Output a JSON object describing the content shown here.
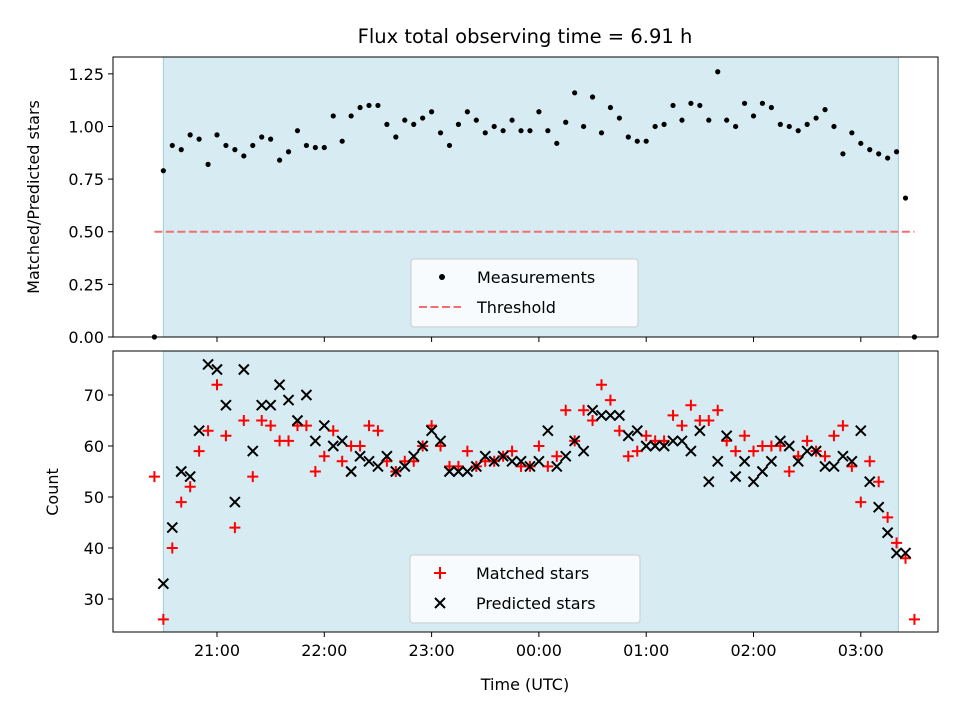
{
  "chart_data": [
    {
      "type": "scatter",
      "title": "Flux total observing time = 6.91 h",
      "xlabel": "",
      "ylabel": "Matched/Predicted stars",
      "ylim": [
        0,
        1.33
      ],
      "yticks": [
        "0.00",
        "0.25",
        "0.50",
        "0.75",
        "1.00",
        "1.25"
      ],
      "grid": false,
      "legend_position": "lower-center",
      "observing_window": [
        "20:30",
        "03:21"
      ],
      "series": [
        {
          "name": "Measurements",
          "color": "#000000",
          "marker": "dot",
          "x": [
            "20:25",
            "20:30",
            "20:35",
            "20:40",
            "20:45",
            "20:50",
            "20:55",
            "21:00",
            "21:05",
            "21:10",
            "21:15",
            "21:20",
            "21:25",
            "21:30",
            "21:35",
            "21:40",
            "21:45",
            "21:50",
            "21:55",
            "22:00",
            "22:05",
            "22:10",
            "22:15",
            "22:20",
            "22:25",
            "22:30",
            "22:35",
            "22:40",
            "22:45",
            "22:50",
            "22:55",
            "23:00",
            "23:05",
            "23:10",
            "23:15",
            "23:20",
            "23:25",
            "23:30",
            "23:35",
            "23:40",
            "23:45",
            "23:50",
            "23:55",
            "00:00",
            "00:05",
            "00:10",
            "00:15",
            "00:20",
            "00:25",
            "00:30",
            "00:35",
            "00:40",
            "00:45",
            "00:50",
            "00:55",
            "01:00",
            "01:05",
            "01:10",
            "01:15",
            "01:20",
            "01:25",
            "01:30",
            "01:35",
            "01:40",
            "01:45",
            "01:50",
            "01:55",
            "02:00",
            "02:05",
            "02:10",
            "02:15",
            "02:20",
            "02:25",
            "02:30",
            "02:35",
            "02:40",
            "02:45",
            "02:50",
            "02:55",
            "03:00",
            "03:05",
            "03:10",
            "03:15",
            "03:20",
            "03:25"
          ],
          "values": [
            0.0,
            0.79,
            0.91,
            0.89,
            0.96,
            0.94,
            0.82,
            0.96,
            0.91,
            0.89,
            0.86,
            0.91,
            0.95,
            0.94,
            0.84,
            0.88,
            0.98,
            0.91,
            0.9,
            0.9,
            1.05,
            0.93,
            1.05,
            1.09,
            1.1,
            1.1,
            1.01,
            0.95,
            1.03,
            1.01,
            1.04,
            1.07,
            0.97,
            0.91,
            1.01,
            1.07,
            1.03,
            0.97,
            1.0,
            0.98,
            1.03,
            0.98,
            0.98,
            1.07,
            0.98,
            0.92,
            1.02,
            1.16,
            1.0,
            1.14,
            0.97,
            1.09,
            1.04,
            0.95,
            0.93,
            0.93,
            1.0,
            1.01,
            1.1,
            1.03,
            1.11,
            1.1,
            1.03,
            1.26,
            1.03,
            1.0,
            1.11,
            1.05,
            1.11,
            1.09,
            1.01,
            1.0,
            0.98,
            1.01,
            1.04,
            1.08,
            1.0,
            0.87,
            0.97,
            0.92,
            0.89,
            0.87,
            0.85,
            0.88,
            0.66
          ]
        },
        {
          "name": "Threshold",
          "color": "#f07070",
          "style": "dashed",
          "x": [
            "20:25",
            "03:30"
          ],
          "values": [
            0.5,
            0.5
          ]
        }
      ],
      "extra_points": [
        {
          "x": "03:30",
          "y": 0.0
        }
      ]
    },
    {
      "type": "scatter",
      "title": "",
      "xlabel": "Time (UTC)",
      "ylabel": "Count",
      "ylim": [
        23,
        78
      ],
      "yticks": [
        "30",
        "40",
        "50",
        "60",
        "70"
      ],
      "xticks": [
        "21:00",
        "22:00",
        "23:00",
        "00:00",
        "01:00",
        "02:00",
        "03:00"
      ],
      "grid": false,
      "legend_position": "lower-center",
      "series": [
        {
          "name": "Matched stars",
          "color": "#ff0000",
          "marker": "plus",
          "x": [
            "20:25",
            "20:30",
            "20:35",
            "20:40",
            "20:45",
            "20:50",
            "20:55",
            "21:00",
            "21:05",
            "21:10",
            "21:15",
            "21:20",
            "21:25",
            "21:30",
            "21:35",
            "21:40",
            "21:45",
            "21:50",
            "21:55",
            "22:00",
            "22:05",
            "22:10",
            "22:15",
            "22:20",
            "22:25",
            "22:30",
            "22:35",
            "22:40",
            "22:45",
            "22:50",
            "22:55",
            "23:00",
            "23:05",
            "23:10",
            "23:15",
            "23:20",
            "23:25",
            "23:30",
            "23:35",
            "23:40",
            "23:45",
            "23:50",
            "23:55",
            "00:00",
            "00:05",
            "00:10",
            "00:15",
            "00:20",
            "00:25",
            "00:30",
            "00:35",
            "00:40",
            "00:45",
            "00:50",
            "00:55",
            "01:00",
            "01:05",
            "01:10",
            "01:15",
            "01:20",
            "01:25",
            "01:30",
            "01:35",
            "01:40",
            "01:45",
            "01:50",
            "01:55",
            "02:00",
            "02:05",
            "02:10",
            "02:15",
            "02:20",
            "02:25",
            "02:30",
            "02:35",
            "02:40",
            "02:45",
            "02:50",
            "02:55",
            "03:00",
            "03:05",
            "03:10",
            "03:15",
            "03:20",
            "03:25",
            "03:30"
          ],
          "values": [
            54,
            26,
            40,
            49,
            52,
            59,
            63,
            72,
            62,
            44,
            65,
            54,
            65,
            64,
            61,
            61,
            64,
            64,
            55,
            58,
            63,
            57,
            60,
            60,
            64,
            63,
            57,
            55,
            57,
            57,
            60,
            64,
            60,
            56,
            56,
            59,
            56,
            57,
            57,
            58,
            59,
            56,
            56,
            60,
            56,
            58,
            67,
            61,
            67,
            65,
            72,
            69,
            63,
            58,
            59,
            62,
            61,
            61,
            66,
            64,
            68,
            65,
            65,
            67,
            61,
            59,
            62,
            59,
            60,
            60,
            60,
            55,
            58,
            61,
            59,
            58,
            62,
            64,
            56,
            49,
            57,
            53,
            46,
            41,
            38,
            26
          ]
        },
        {
          "name": "Predicted stars",
          "color": "#000000",
          "marker": "x",
          "x": [
            "20:30",
            "20:35",
            "20:40",
            "20:45",
            "20:50",
            "20:55",
            "21:00",
            "21:05",
            "21:10",
            "21:15",
            "21:20",
            "21:25",
            "21:30",
            "21:35",
            "21:40",
            "21:45",
            "21:50",
            "21:55",
            "22:00",
            "22:05",
            "22:10",
            "22:15",
            "22:20",
            "22:25",
            "22:30",
            "22:35",
            "22:40",
            "22:45",
            "22:50",
            "22:55",
            "23:00",
            "23:05",
            "23:10",
            "23:15",
            "23:20",
            "23:25",
            "23:30",
            "23:35",
            "23:40",
            "23:45",
            "23:50",
            "23:55",
            "00:00",
            "00:05",
            "00:10",
            "00:15",
            "00:20",
            "00:25",
            "00:30",
            "00:35",
            "00:40",
            "00:45",
            "00:50",
            "00:55",
            "01:00",
            "01:05",
            "01:10",
            "01:15",
            "01:20",
            "01:25",
            "01:30",
            "01:35",
            "01:40",
            "01:45",
            "01:50",
            "01:55",
            "02:00",
            "02:05",
            "02:10",
            "02:15",
            "02:20",
            "02:25",
            "02:30",
            "02:35",
            "02:40",
            "02:45",
            "02:50",
            "02:55",
            "03:00",
            "03:05",
            "03:10",
            "03:15",
            "03:20",
            "03:25"
          ],
          "values": [
            33,
            44,
            55,
            54,
            63,
            76,
            75,
            68,
            49,
            75,
            59,
            68,
            68,
            72,
            69,
            65,
            70,
            61,
            64,
            60,
            61,
            55,
            58,
            57,
            56,
            58,
            55,
            56,
            58,
            60,
            63,
            61,
            55,
            55,
            55,
            56,
            58,
            57,
            58,
            57,
            57,
            56,
            57,
            63,
            56,
            58,
            61,
            59,
            67,
            66,
            66,
            66,
            62,
            63,
            60,
            60,
            60,
            61,
            61,
            59,
            63,
            53,
            57,
            62,
            54,
            57,
            53,
            55,
            57,
            61,
            60,
            57,
            59,
            59,
            56,
            56,
            58,
            57,
            63,
            53,
            48,
            43,
            39,
            39
          ]
        }
      ]
    }
  ]
}
